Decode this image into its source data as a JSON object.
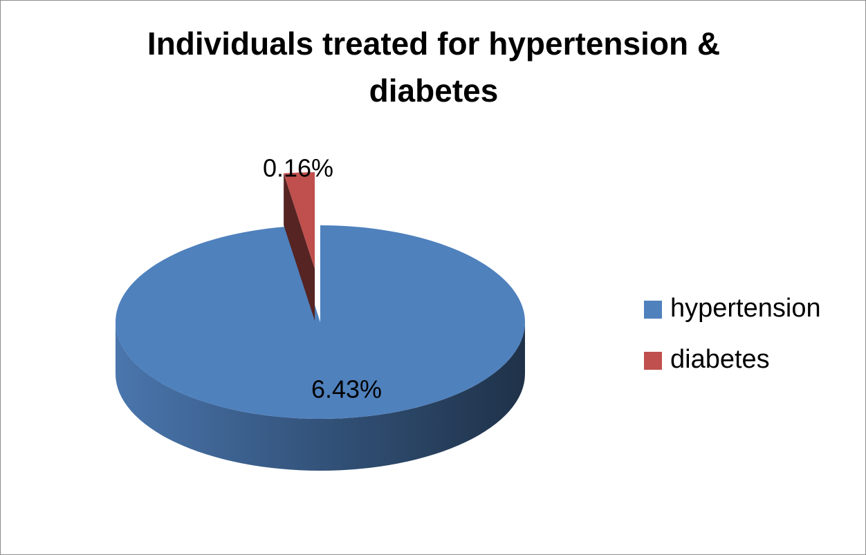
{
  "chart_data": {
    "type": "pie",
    "title": "Individuals treated for hypertension & diabetes",
    "categories": [
      "hypertension",
      "diabetes"
    ],
    "values": [
      6.43,
      0.16
    ],
    "value_labels": [
      "6.43%",
      "0.16%"
    ],
    "colors": [
      "#4f81bd",
      "#c0504d"
    ],
    "legend": "right"
  }
}
